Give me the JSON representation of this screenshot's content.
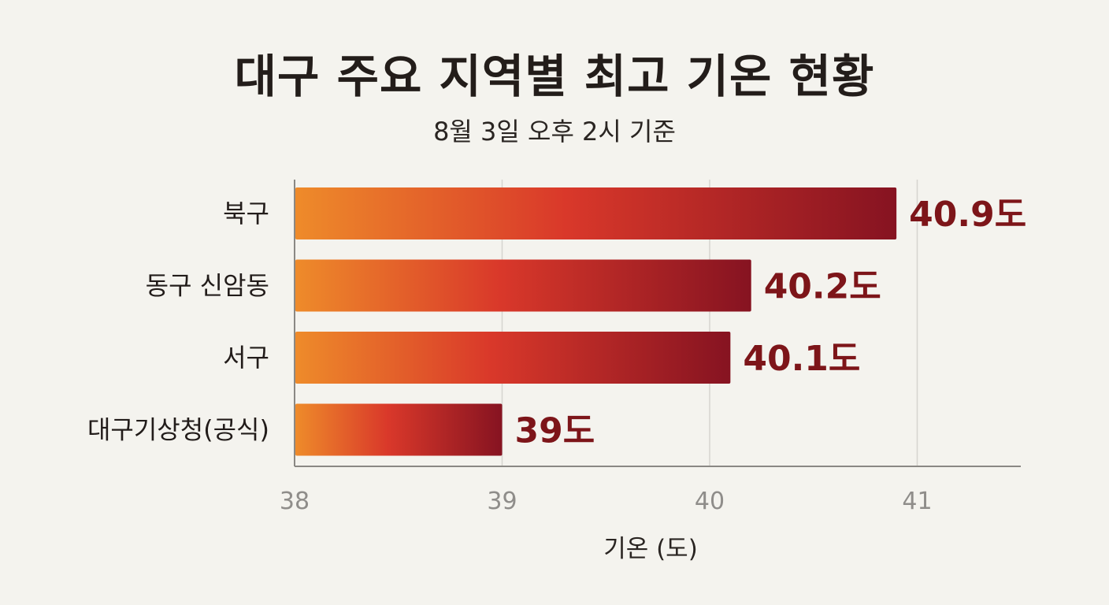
{
  "chart_data": {
    "type": "bar",
    "orientation": "horizontal",
    "title": "대구 주요 지역별 최고 기온 현황",
    "subtitle": "8월 3일 오후 2시 기준",
    "categories": [
      "북구",
      "동구 신암동",
      "서구",
      "대구기상청(공식)"
    ],
    "values": [
      40.9,
      40.2,
      40.1,
      39
    ],
    "value_labels": [
      "40.9도",
      "40.2도",
      "40.1도",
      "39도"
    ],
    "xlabel": "기온 (도)",
    "ylabel": "",
    "xlim": [
      38,
      41.5
    ],
    "xticks": [
      38,
      39,
      40,
      41
    ],
    "tick_labels": [
      "38",
      "39",
      "40",
      "41"
    ],
    "grid": "vertical",
    "legend": "none",
    "colors": {
      "bar_start": "#ee8b2a",
      "bar_mid": "#d9382a",
      "bar_end": "#861321",
      "value_text": "#7d1519",
      "grid": "#d6d4cf",
      "axis": "#8a8884"
    }
  }
}
